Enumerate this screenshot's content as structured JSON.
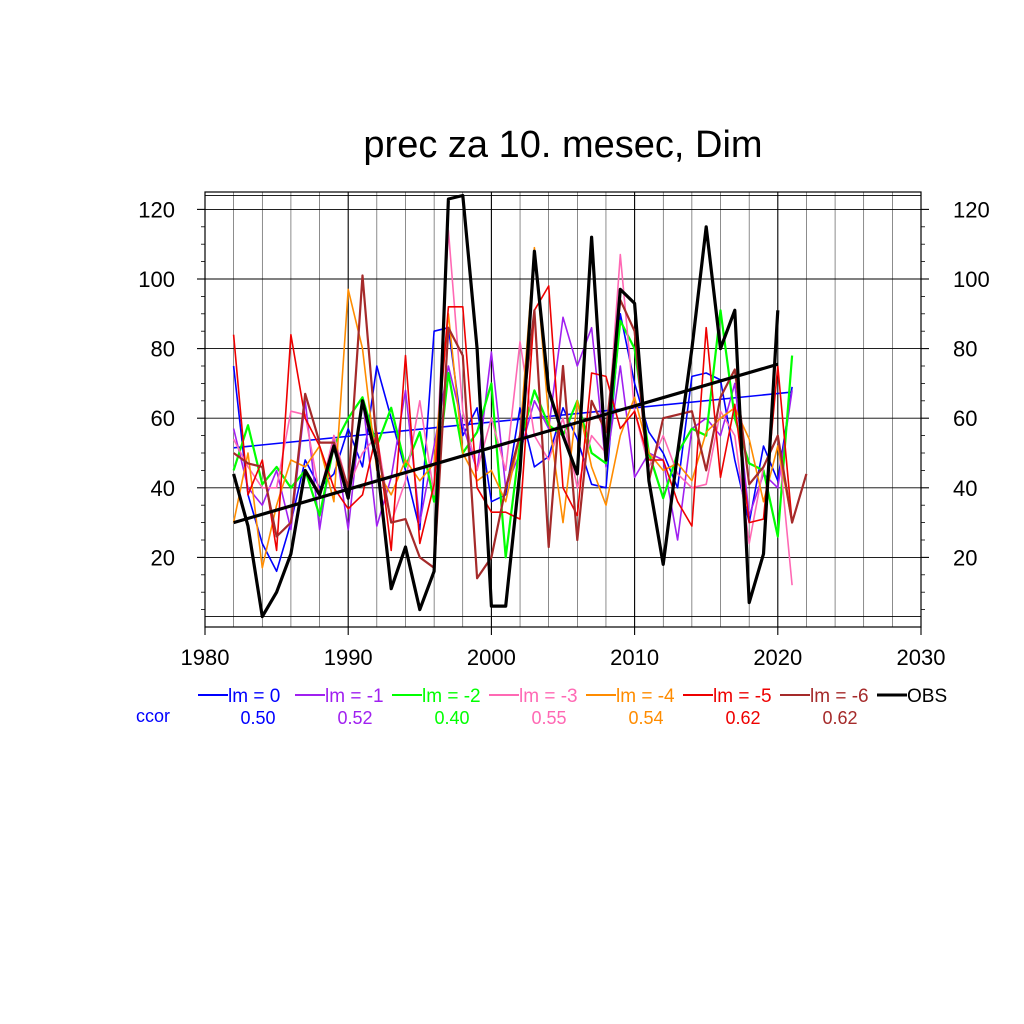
{
  "chart_data": {
    "type": "line",
    "title": "prec za 10. mesec, Dim",
    "xlim": [
      1980,
      2030
    ],
    "ylim": [
      0,
      125
    ],
    "x_ticks": [
      "1980",
      "1990",
      "2000",
      "2010",
      "2020",
      "2030"
    ],
    "y_ticks": [
      "20",
      "40",
      "60",
      "80",
      "100",
      "120"
    ],
    "grid": true,
    "ccor_label": "ccor",
    "series": [
      {
        "name": "lm = 0",
        "color": "#0000ff",
        "width": 1.6,
        "ccor": "0.50",
        "x": [
          1982,
          1983,
          1984,
          1985,
          1986,
          1987,
          1988,
          1989,
          1990,
          1991,
          1992,
          1993,
          1994,
          1995,
          1996,
          1997,
          1998,
          1999,
          2000,
          2001,
          2002,
          2003,
          2004,
          2005,
          2006,
          2007,
          2008,
          2009,
          2010,
          2011,
          2012,
          2013,
          2014,
          2015,
          2016,
          2017,
          2018,
          2019,
          2020,
          2021
        ],
        "y": [
          75,
          38,
          24,
          16,
          30,
          48,
          40,
          44,
          57,
          46,
          75,
          60,
          45,
          28,
          85,
          86,
          55,
          63,
          36,
          38,
          63,
          46,
          49,
          63,
          54,
          41,
          40,
          90,
          70,
          56,
          50,
          40,
          72,
          73,
          71,
          48,
          30,
          52,
          42,
          69
        ],
        "trend": [
          51.5,
          67.5
        ]
      },
      {
        "name": "lm = -1",
        "color": "#a020f0",
        "width": 1.6,
        "ccor": "0.52",
        "x": [
          1982,
          1983,
          1984,
          1985,
          1986,
          1987,
          1988,
          1989,
          1990,
          1991,
          1992,
          1993,
          1994,
          1995,
          1996,
          1997,
          1998,
          1999,
          2000,
          2001,
          2002,
          2003,
          2004,
          2005,
          2006,
          2007,
          2008,
          2009,
          2010,
          2011,
          2012,
          2013,
          2014,
          2015,
          2016,
          2017,
          2018,
          2019,
          2020,
          2021
        ],
        "y": [
          57,
          40,
          35,
          45,
          28,
          65,
          28,
          55,
          28,
          66,
          29,
          43,
          68,
          30,
          52,
          75,
          58,
          45,
          79,
          40,
          50,
          65,
          57,
          89,
          75,
          86,
          46,
          75,
          43,
          50,
          48,
          25,
          57,
          60,
          55,
          70,
          32,
          44,
          40,
          68
        ]
      },
      {
        "name": "lm = -2",
        "color": "#00ff00",
        "width": 2.2,
        "ccor": "0.40",
        "x": [
          1982,
          1983,
          1984,
          1985,
          1986,
          1987,
          1988,
          1989,
          1990,
          1991,
          1992,
          1993,
          1994,
          1995,
          1996,
          1997,
          1998,
          1999,
          2000,
          2001,
          2002,
          2003,
          2004,
          2005,
          2006,
          2007,
          2008,
          2009,
          2010,
          2011,
          2012,
          2013,
          2014,
          2015,
          2016,
          2017,
          2018,
          2019,
          2020,
          2021
        ],
        "y": [
          45,
          58,
          41,
          46,
          40,
          45,
          32,
          52,
          60,
          66,
          52,
          63,
          46,
          56,
          36,
          73,
          50,
          56,
          70,
          20,
          53,
          68,
          58,
          55,
          65,
          50,
          47,
          88,
          80,
          50,
          37,
          50,
          57,
          55,
          91,
          60,
          47,
          45,
          26,
          78
        ]
      },
      {
        "name": "lm = -3",
        "color": "#ff69b4",
        "width": 1.6,
        "ccor": "0.55",
        "x": [
          1982,
          1983,
          1984,
          1985,
          1986,
          1987,
          1988,
          1989,
          1990,
          1991,
          1992,
          1993,
          1994,
          1995,
          1996,
          1997,
          1998,
          1999,
          2000,
          2001,
          2002,
          2003,
          2004,
          2005,
          2006,
          2007,
          2008,
          2009,
          2010,
          2011,
          2012,
          2013,
          2014,
          2015,
          2016,
          2017,
          2018,
          2019,
          2020,
          2021
        ],
        "y": [
          54,
          46,
          40,
          40,
          62,
          61,
          38,
          55,
          40,
          50,
          55,
          30,
          42,
          65,
          38,
          114,
          62,
          45,
          60,
          45,
          82,
          55,
          48,
          60,
          40,
          55,
          50,
          107,
          62,
          46,
          55,
          44,
          40,
          41,
          62,
          55,
          24,
          46,
          55,
          12
        ]
      },
      {
        "name": "lm = -4",
        "color": "#ff8c00",
        "width": 1.6,
        "ccor": "0.54",
        "x": [
          1982,
          1983,
          1984,
          1985,
          1986,
          1987,
          1988,
          1989,
          1990,
          1991,
          1992,
          1993,
          1994,
          1995,
          1996,
          1997,
          1998,
          1999,
          2000,
          2001,
          2002,
          2003,
          2004,
          2005,
          2006,
          2007,
          2008,
          2009,
          2010,
          2011,
          2012,
          2013,
          2014,
          2015,
          2016,
          2017,
          2018,
          2019,
          2020,
          2021
        ],
        "y": [
          30,
          50,
          17,
          35,
          48,
          46,
          52,
          36,
          97,
          80,
          45,
          38,
          48,
          42,
          47,
          90,
          50,
          42,
          45,
          36,
          55,
          109,
          60,
          30,
          65,
          46,
          35,
          55,
          66,
          50,
          45,
          47,
          42,
          56,
          60,
          63,
          54,
          36,
          52,
          30
        ]
      },
      {
        "name": "lm = -5",
        "color": "#ee0000",
        "width": 1.6,
        "ccor": "0.62",
        "x": [
          1982,
          1983,
          1984,
          1985,
          1986,
          1987,
          1988,
          1989,
          1990,
          1991,
          1992,
          1993,
          1994,
          1995,
          1996,
          1997,
          1998,
          1999,
          2000,
          2001,
          2002,
          2003,
          2004,
          2005,
          2006,
          2007,
          2008,
          2009,
          2010,
          2011,
          2012,
          2013,
          2014,
          2015,
          2016,
          2017,
          2018,
          2019,
          2020,
          2021
        ],
        "y": [
          84,
          38,
          48,
          22,
          84,
          60,
          52,
          40,
          34,
          38,
          56,
          22,
          78,
          24,
          41,
          92,
          92,
          40,
          33,
          33,
          31,
          91,
          98,
          40,
          32,
          73,
          72,
          57,
          62,
          48,
          48,
          36,
          29,
          86,
          43,
          64,
          30,
          31,
          75,
          30
        ]
      },
      {
        "name": "lm = -6",
        "color": "#a52a2a",
        "width": 2.2,
        "ccor": "0.62",
        "x": [
          1982,
          1983,
          1984,
          1985,
          1986,
          1987,
          1988,
          1989,
          1990,
          1991,
          1992,
          1993,
          1994,
          1995,
          1996,
          1997,
          1998,
          1999,
          2000,
          2001,
          2002,
          2003,
          2004,
          2005,
          2006,
          2007,
          2008,
          2009,
          2010,
          2011,
          2012,
          2013,
          2014,
          2015,
          2016,
          2017,
          2018,
          2019,
          2020,
          2021,
          2022
        ],
        "y": [
          50,
          47,
          46,
          26,
          30,
          67,
          53,
          53,
          40,
          101,
          52,
          30,
          31,
          20,
          17,
          86,
          78,
          14,
          20,
          40,
          55,
          91,
          23,
          75,
          25,
          65,
          56,
          94,
          85,
          42,
          60,
          61,
          62,
          45,
          66,
          74,
          41,
          46,
          55,
          30,
          44
        ]
      },
      {
        "name": "OBS",
        "color": "#000000",
        "width": 3.2,
        "ccor": "",
        "x": [
          1982,
          1983,
          1984,
          1985,
          1986,
          1987,
          1988,
          1989,
          1990,
          1991,
          1992,
          1993,
          1994,
          1995,
          1996,
          1997,
          1998,
          1999,
          2000,
          2001,
          2002,
          2003,
          2004,
          2005,
          2006,
          2007,
          2008,
          2009,
          2010,
          2011,
          2012,
          2013,
          2014,
          2015,
          2016,
          2017,
          2018,
          2019,
          2020
        ],
        "y": [
          44,
          29,
          3,
          10,
          21,
          45,
          38,
          52,
          37,
          65,
          48,
          11,
          23,
          5,
          16,
          123,
          124,
          80,
          6,
          6,
          45,
          108,
          68,
          55,
          44,
          112,
          48,
          97,
          93,
          42,
          18,
          50,
          80,
          115,
          80,
          91,
          7,
          21,
          91
        ],
        "trend": [
          30.0,
          75.5
        ]
      }
    ]
  }
}
